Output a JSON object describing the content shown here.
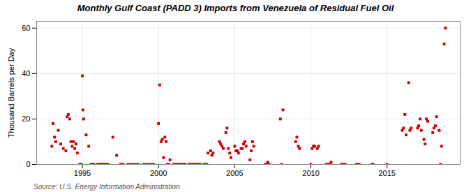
{
  "chart_data": {
    "type": "scatter",
    "title": "Monthly Gulf Coast (PADD 3) Imports from Venezuela of Residual Fuel Oil",
    "ylabel": "Thousand Barrels per Day",
    "source": "Source: U.S. Energy Information Administration",
    "color": "#cc0000",
    "marker": "square",
    "grid": true,
    "xlim": [
      1992.0,
      2019.8
    ],
    "xticks": [
      1995,
      2000,
      2005,
      2010,
      2015
    ],
    "ylim": [
      0,
      63
    ],
    "yticks": [
      0,
      20,
      40,
      60
    ],
    "x": [
      1993.0,
      1993.08,
      1993.17,
      1993.25,
      1993.42,
      1993.58,
      1993.75,
      1993.92,
      1994.0,
      1994.08,
      1994.17,
      1994.25,
      1994.33,
      1994.42,
      1994.5,
      1994.58,
      1994.67,
      1994.83,
      1994.92,
      1995.0,
      1995.04,
      1995.08,
      1995.25,
      1995.42,
      1995.58,
      1995.67,
      1995.75,
      1996.0,
      1996.08,
      1996.17,
      1996.25,
      1996.33,
      1996.42,
      1996.5,
      1996.58,
      1996.67,
      1997.0,
      1997.25,
      1997.5,
      1997.58,
      1997.67,
      1998.0,
      1998.17,
      1998.33,
      1998.5,
      1998.67,
      1999.0,
      1999.17,
      1999.33,
      1999.5,
      1999.67,
      2000.0,
      2000.08,
      2000.17,
      2000.25,
      2000.33,
      2000.42,
      2000.5,
      2000.58,
      2000.67,
      2000.75,
      2001.0,
      2001.08,
      2001.17,
      2001.25,
      2001.33,
      2001.42,
      2001.5,
      2001.58,
      2001.67,
      2001.75,
      2002.0,
      2002.08,
      2002.17,
      2002.25,
      2002.33,
      2002.42,
      2002.5,
      2002.58,
      2002.67,
      2002.75,
      2003.0,
      2003.08,
      2003.17,
      2003.25,
      2003.42,
      2003.5,
      2003.58,
      2004.0,
      2004.08,
      2004.17,
      2004.25,
      2004.42,
      2004.5,
      2004.58,
      2004.67,
      2004.75,
      2005.0,
      2005.08,
      2005.17,
      2005.25,
      2005.42,
      2005.5,
      2005.58,
      2005.67,
      2005.75,
      2006.0,
      2006.08,
      2006.17,
      2006.25,
      2007.0,
      2007.08,
      2007.17,
      2007.25,
      2008.0,
      2008.08,
      2008.17,
      2009.0,
      2009.08,
      2009.17,
      2009.25,
      2010.0,
      2010.08,
      2010.17,
      2010.25,
      2010.42,
      2010.5,
      2011.0,
      2011.08,
      2011.17,
      2011.25,
      2011.33,
      2012.0,
      2012.08,
      2012.17,
      2012.25,
      2013.0,
      2013.08,
      2013.17,
      2014.0,
      2014.08,
      2015.0,
      2016.0,
      2016.08,
      2016.17,
      2016.25,
      2016.42,
      2016.5,
      2016.58,
      2017.0,
      2017.08,
      2017.17,
      2017.25,
      2017.42,
      2017.5,
      2017.58,
      2017.67,
      2018.0,
      2018.08,
      2018.17,
      2018.25,
      2018.42,
      2018.5,
      2018.58,
      2018.75,
      2018.83
    ],
    "values": [
      8,
      18,
      12,
      10,
      15,
      9,
      7,
      6,
      21,
      22,
      20,
      10,
      8,
      10,
      7,
      9,
      5,
      0,
      0,
      39,
      24,
      20,
      13,
      8,
      0,
      0,
      0,
      0,
      0,
      0,
      0,
      0,
      0,
      0,
      0,
      0,
      12,
      4,
      0,
      0,
      0,
      0,
      0,
      0,
      0,
      0,
      0,
      0,
      0,
      0,
      0,
      18,
      35,
      10,
      11,
      3,
      12,
      10,
      0,
      0,
      2,
      0,
      0,
      0,
      0,
      0,
      0,
      0,
      0,
      0,
      0,
      0,
      0,
      0,
      0,
      0,
      0,
      0,
      0,
      0,
      0,
      0,
      0,
      0,
      5,
      6,
      4,
      5,
      10,
      9,
      8,
      7,
      14,
      16,
      7,
      5,
      3,
      8,
      6,
      6,
      5,
      7,
      7,
      9,
      10,
      8,
      2,
      6,
      10,
      8,
      0,
      0,
      1,
      0,
      20,
      0,
      24,
      10,
      12,
      8,
      7,
      0,
      7,
      8,
      8,
      7,
      8,
      0,
      0,
      0,
      0,
      1,
      0,
      0,
      0,
      0,
      0,
      0,
      0,
      0,
      0,
      0,
      15,
      16,
      22,
      13,
      36,
      15,
      16,
      16,
      17,
      20,
      15,
      11,
      9,
      20,
      19,
      14,
      16,
      17,
      21,
      15,
      0,
      8,
      53,
      60
    ]
  }
}
